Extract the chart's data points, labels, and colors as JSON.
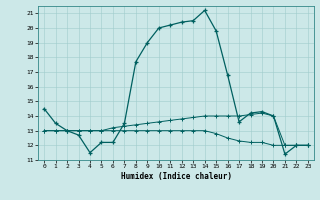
{
  "title": "",
  "xlabel": "Humidex (Indice chaleur)",
  "xlim": [
    -0.5,
    23.5
  ],
  "ylim": [
    11,
    21.5
  ],
  "yticks": [
    11,
    12,
    13,
    14,
    15,
    16,
    17,
    18,
    19,
    20,
    21
  ],
  "xticks": [
    0,
    1,
    2,
    3,
    4,
    5,
    6,
    7,
    8,
    9,
    10,
    11,
    12,
    13,
    14,
    15,
    16,
    17,
    18,
    19,
    20,
    21,
    22,
    23
  ],
  "bg_color": "#cce8e8",
  "line_color": "#006060",
  "line1_x": [
    0,
    1,
    2,
    3,
    4,
    5,
    6,
    7,
    8,
    9,
    10,
    11,
    12,
    13,
    14,
    15,
    16,
    17,
    18,
    19,
    20,
    21,
    22,
    23
  ],
  "line1_y": [
    14.5,
    13.5,
    13.0,
    12.7,
    11.5,
    12.2,
    12.2,
    13.5,
    17.7,
    19.0,
    20.0,
    20.2,
    20.4,
    20.5,
    21.2,
    19.8,
    16.8,
    13.6,
    14.2,
    14.3,
    14.0,
    11.4,
    12.0,
    12.0
  ],
  "line2_x": [
    0,
    1,
    2,
    3,
    4,
    5,
    6,
    7,
    8,
    9,
    10,
    11,
    12,
    13,
    14,
    15,
    16,
    17,
    18,
    19,
    20,
    21,
    22,
    23
  ],
  "line2_y": [
    13.0,
    13.0,
    13.0,
    13.0,
    13.0,
    13.0,
    13.2,
    13.3,
    13.4,
    13.5,
    13.6,
    13.7,
    13.8,
    13.9,
    14.0,
    14.0,
    14.0,
    14.0,
    14.1,
    14.2,
    14.0,
    12.0,
    12.0,
    12.0
  ],
  "line3_x": [
    0,
    1,
    2,
    3,
    4,
    5,
    6,
    7,
    8,
    9,
    10,
    11,
    12,
    13,
    14,
    15,
    16,
    17,
    18,
    19,
    20,
    21,
    22,
    23
  ],
  "line3_y": [
    13.0,
    13.0,
    13.0,
    13.0,
    13.0,
    13.0,
    13.0,
    13.0,
    13.0,
    13.0,
    13.0,
    13.0,
    13.0,
    13.0,
    13.0,
    12.8,
    12.5,
    12.3,
    12.2,
    12.2,
    12.0,
    12.0,
    12.0,
    12.0
  ]
}
